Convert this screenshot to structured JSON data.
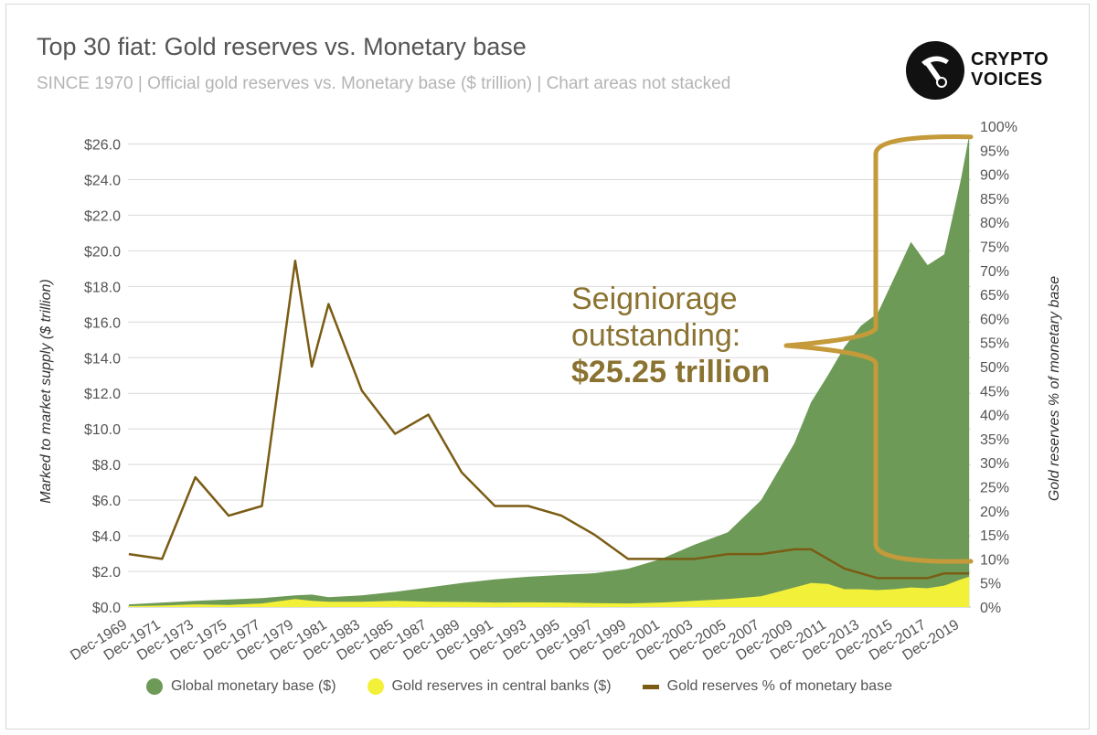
{
  "header": {
    "title": "Top 30 fiat: Gold reserves vs. Monetary base",
    "subtitle": "SINCE 1970 | Official gold reserves vs. Monetary base ($ trillion) | Chart areas not stacked"
  },
  "logo": {
    "line1": "CRYPTO",
    "line2": "VOICES",
    "icon": "pickaxe-icon"
  },
  "annotation": {
    "line1": "Seigniorage",
    "line2": "outstanding:",
    "line3": "$25.25 trillion"
  },
  "colors": {
    "monetary_base": "#6e9a57",
    "gold_reserves": "#f3f03a",
    "gold_pct": "#7a5c14",
    "annotation": "#c49a3a",
    "grid": "#d9d9d9"
  },
  "legend": [
    {
      "label": "Global monetary base ($)"
    },
    {
      "label": "Gold reserves in central banks ($)"
    },
    {
      "label": "Gold reserves % of monetary base"
    }
  ],
  "chart_data": {
    "type": "area",
    "title": "Top 30 fiat: Gold reserves vs. Monetary base",
    "ylabel": "Marked to market supply ($ trillion)",
    "y2label": "Gold reserves % of monetary base",
    "ylim": [
      0,
      27
    ],
    "y2lim": [
      0,
      100
    ],
    "grid": true,
    "legend_position": "bottom",
    "y_ticks": [
      "$0.0",
      "$2.0",
      "$4.0",
      "$6.0",
      "$8.0",
      "$10.0",
      "$12.0",
      "$14.0",
      "$16.0",
      "$18.0",
      "$20.0",
      "$22.0",
      "$24.0",
      "$26.0"
    ],
    "y2_ticks": [
      "0%",
      "5%",
      "10%",
      "15%",
      "20%",
      "25%",
      "30%",
      "35%",
      "40%",
      "45%",
      "50%",
      "55%",
      "60%",
      "65%",
      "70%",
      "75%",
      "80%",
      "85%",
      "90%",
      "95%",
      "100%"
    ],
    "x_ticks": [
      "Dec-1969",
      "Dec-1971",
      "Dec-1973",
      "Dec-1975",
      "Dec-1977",
      "Dec-1979",
      "Dec-1981",
      "Dec-1983",
      "Dec-1985",
      "Dec-1987",
      "Dec-1989",
      "Dec-1991",
      "Dec-1993",
      "Dec-1995",
      "Dec-1997",
      "Dec-1999",
      "Dec-2001",
      "Dec-2003",
      "Dec-2005",
      "Dec-2007",
      "Dec-2009",
      "Dec-2011",
      "Dec-2013",
      "Dec-2015",
      "Dec-2017",
      "Dec-2019"
    ],
    "x": [
      1970,
      1972,
      1974,
      1976,
      1978,
      1980,
      1981,
      1982,
      1984,
      1986,
      1988,
      1990,
      1992,
      1994,
      1996,
      1998,
      2000,
      2002,
      2004,
      2006,
      2008,
      2010,
      2011,
      2012,
      2013,
      2014,
      2015,
      2016,
      2017,
      2018,
      2019,
      2020,
      2020.5
    ],
    "series": [
      {
        "name": "Global monetary base ($)",
        "axis": "left",
        "values": [
          0.15,
          0.25,
          0.35,
          0.42,
          0.5,
          0.65,
          0.7,
          0.55,
          0.65,
          0.85,
          1.1,
          1.35,
          1.55,
          1.7,
          1.8,
          1.9,
          2.15,
          2.7,
          3.5,
          4.2,
          6.0,
          9.2,
          11.5,
          13.0,
          14.6,
          15.8,
          16.5,
          18.5,
          20.5,
          19.2,
          19.8,
          24.0,
          26.5
        ]
      },
      {
        "name": "Gold reserves in central banks ($)",
        "axis": "left",
        "values": [
          0.05,
          0.08,
          0.15,
          0.12,
          0.2,
          0.45,
          0.35,
          0.3,
          0.3,
          0.35,
          0.3,
          0.28,
          0.25,
          0.26,
          0.25,
          0.22,
          0.2,
          0.25,
          0.35,
          0.45,
          0.6,
          1.1,
          1.35,
          1.3,
          1.0,
          1.0,
          0.95,
          1.0,
          1.1,
          1.05,
          1.2,
          1.55,
          1.7
        ]
      },
      {
        "name": "Gold reserves % of monetary base",
        "axis": "right",
        "values": [
          11,
          10,
          27,
          19,
          21,
          72,
          50,
          63,
          45,
          36,
          40,
          28,
          21,
          21,
          19,
          15,
          10,
          10,
          10,
          11,
          11,
          12,
          12,
          10,
          8,
          7,
          6,
          6,
          6,
          6,
          7,
          7,
          7
        ]
      }
    ]
  }
}
